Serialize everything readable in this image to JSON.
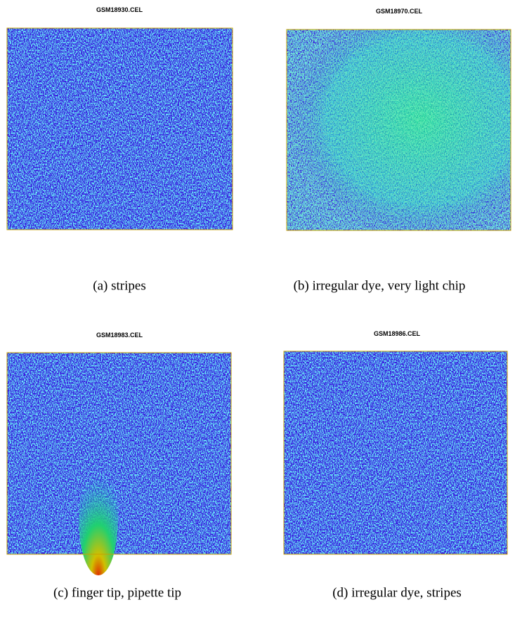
{
  "panels": [
    {
      "title": "GSM18930.CEL",
      "caption": "(a) stripes"
    },
    {
      "title": "GSM18970.CEL",
      "caption": "(b) irregular dye, very light chip"
    },
    {
      "title": "GSM18983.CEL",
      "caption": "(c) finger tip, pipette tip"
    },
    {
      "title": "GSM18986.CEL",
      "caption": "(d) irregular dye, stripes"
    }
  ]
}
